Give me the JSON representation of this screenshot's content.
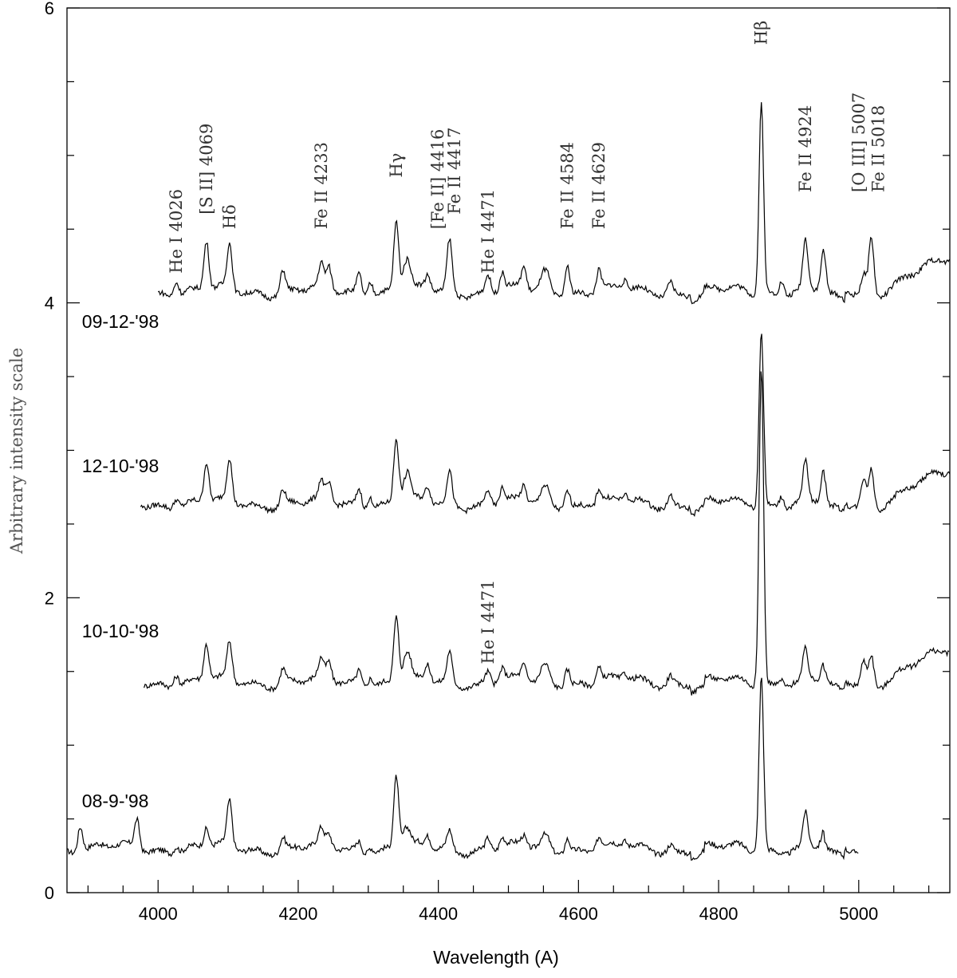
{
  "chart_data": {
    "type": "line",
    "xlabel": "Wavelength (A)",
    "ylabel": "Arbitrary intensity scale",
    "xlim": [
      3870,
      5130
    ],
    "ylim": [
      0,
      6
    ],
    "x_ticks": [
      4000,
      4200,
      4400,
      4600,
      4800,
      5000
    ],
    "y_ticks": [
      0,
      2,
      4,
      6
    ],
    "x_minor_step": 50,
    "y_minor_step": 0.5,
    "series": [
      {
        "name": "08-9-'98",
        "xrange": [
          3870,
          5000
        ],
        "baseline": 0.3,
        "label_at": [
          3880,
          0.58
        ]
      },
      {
        "name": "10-10-'98",
        "xrange": [
          3980,
          5130
        ],
        "baseline": 1.43,
        "label_at": [
          3880,
          1.73
        ]
      },
      {
        "name": "12-10-'98",
        "xrange": [
          3975,
          5130
        ],
        "baseline": 2.64,
        "label_at": [
          3880,
          2.85
        ]
      },
      {
        "name": "09-12-'98",
        "xrange": [
          4000,
          5130
        ],
        "baseline": 4.08,
        "label_at": [
          3880,
          3.83
        ]
      }
    ],
    "emission_lines": [
      {
        "wavelength": 3889,
        "strengths": [
          0.18,
          0,
          0,
          0
        ]
      },
      {
        "wavelength": 3970,
        "strengths": [
          0.2,
          0,
          0,
          0
        ]
      },
      {
        "wavelength": 4026,
        "strengths": [
          0.05,
          0.08,
          0.07,
          0.1
        ]
      },
      {
        "wavelength": 4069,
        "strengths": [
          0.13,
          0.25,
          0.27,
          0.33
        ]
      },
      {
        "wavelength": 4102,
        "strengths": [
          0.3,
          0.25,
          0.28,
          0.3
        ]
      },
      {
        "wavelength": 4178,
        "strengths": [
          0.08,
          0.1,
          0.1,
          0.15
        ]
      },
      {
        "wavelength": 4233,
        "strengths": [
          0.1,
          0.12,
          0.12,
          0.15
        ]
      },
      {
        "wavelength": 4244,
        "strengths": [
          0.08,
          0.12,
          0.12,
          0.15
        ]
      },
      {
        "wavelength": 4287,
        "strengths": [
          0.07,
          0.1,
          0.12,
          0.14
        ]
      },
      {
        "wavelength": 4303,
        "strengths": [
          0.05,
          0.07,
          0.08,
          0.1
        ]
      },
      {
        "wavelength": 4340,
        "strengths": [
          0.5,
          0.45,
          0.45,
          0.48
        ]
      },
      {
        "wavelength": 4352,
        "strengths": [
          0.1,
          0.12,
          0.12,
          0.14
        ]
      },
      {
        "wavelength": 4358,
        "strengths": [
          0.08,
          0.14,
          0.15,
          0.14
        ]
      },
      {
        "wavelength": 4385,
        "strengths": [
          0.07,
          0.1,
          0.1,
          0.1
        ]
      },
      {
        "wavelength": 4416,
        "strengths": [
          0.12,
          0.2,
          0.22,
          0.35
        ]
      },
      {
        "wavelength": 4471,
        "strengths": [
          0.08,
          0.08,
          0.1,
          0.12
        ]
      },
      {
        "wavelength": 4491,
        "strengths": [
          0.07,
          0.09,
          0.1,
          0.12
        ]
      },
      {
        "wavelength": 4522,
        "strengths": [
          0.07,
          0.1,
          0.1,
          0.15
        ]
      },
      {
        "wavelength": 4549,
        "strengths": [
          0.06,
          0.08,
          0.08,
          0.1
        ]
      },
      {
        "wavelength": 4556,
        "strengths": [
          0.06,
          0.08,
          0.08,
          0.1
        ]
      },
      {
        "wavelength": 4584,
        "strengths": [
          0.1,
          0.12,
          0.12,
          0.2
        ]
      },
      {
        "wavelength": 4629,
        "strengths": [
          0.08,
          0.1,
          0.1,
          0.15
        ]
      },
      {
        "wavelength": 4666,
        "strengths": [
          0.04,
          0.05,
          0.05,
          0.06
        ]
      },
      {
        "wavelength": 4731,
        "strengths": [
          0.04,
          0.06,
          0.07,
          0.08
        ]
      },
      {
        "wavelength": 4861,
        "strengths": [
          1.2,
          2.15,
          1.2,
          1.3
        ]
      },
      {
        "wavelength": 4890,
        "strengths": [
          0,
          0.05,
          0.08,
          0.1
        ]
      },
      {
        "wavelength": 4924,
        "strengths": [
          0.22,
          0.2,
          0.27,
          0.33
        ]
      },
      {
        "wavelength": 4950,
        "strengths": [
          0.1,
          0.13,
          0.22,
          0.28
        ]
      },
      {
        "wavelength": 5007,
        "strengths": [
          0,
          0.15,
          0.18,
          0.12
        ]
      },
      {
        "wavelength": 5018,
        "strengths": [
          0,
          0.2,
          0.25,
          0.38
        ]
      }
    ],
    "annotations": [
      {
        "text": "He I 4026",
        "x": 4026,
        "y": 4.2
      },
      {
        "text": "[S II] 4069",
        "x": 4069,
        "y": 4.6
      },
      {
        "text": "Hδ",
        "x": 4102,
        "y": 4.5
      },
      {
        "text": "Fe II 4233",
        "x": 4233,
        "y": 4.5
      },
      {
        "text": "Hγ",
        "x": 4340,
        "y": 4.85
      },
      {
        "text": "[Fe II] 4416",
        "x": 4399,
        "y": 4.5
      },
      {
        "text": "Fe II 4417",
        "x": 4423,
        "y": 4.6
      },
      {
        "text": "He I 4471",
        "x": 4471,
        "y": 4.2
      },
      {
        "text": "Fe II 4584",
        "x": 4584,
        "y": 4.5
      },
      {
        "text": "Fe II 4629",
        "x": 4629,
        "y": 4.5
      },
      {
        "text": "Hβ",
        "x": 4861,
        "y": 5.75
      },
      {
        "text": "Fe II 4924",
        "x": 4924,
        "y": 4.75
      },
      {
        "text": "[O III] 5007",
        "x": 5000,
        "y": 4.75
      },
      {
        "text": "Fe II 5018",
        "x": 5028,
        "y": 4.75
      },
      {
        "text": "He I 4471",
        "x": 4471,
        "y": 1.55
      }
    ]
  }
}
